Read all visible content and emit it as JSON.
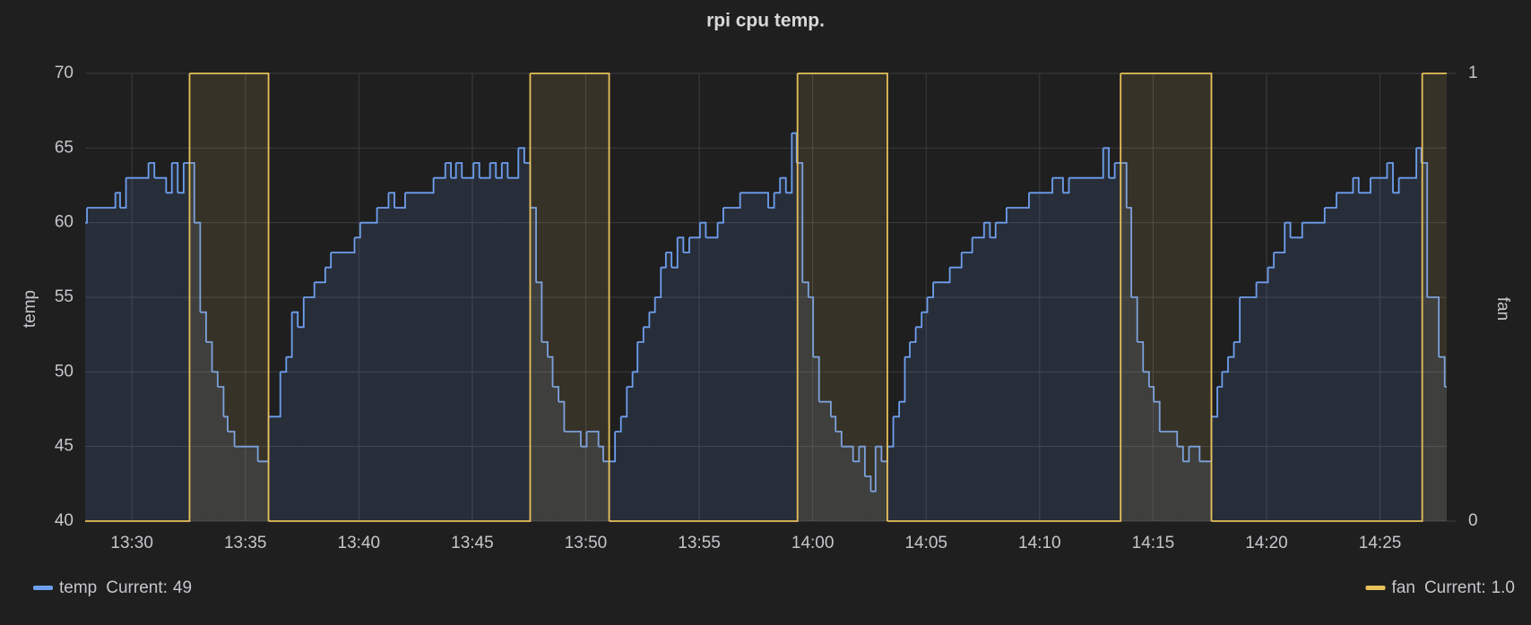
{
  "chart_data": {
    "type": "line",
    "step": true,
    "title": "rpi cpu temp.",
    "y_label": "temp",
    "y2_label": "fan",
    "legend_stat": "Current:",
    "grid": true,
    "xlim": [
      807.94,
      867.94
    ],
    "xticks": [
      {
        "value": 810,
        "label": "13:30"
      },
      {
        "value": 815,
        "label": "13:35"
      },
      {
        "value": 820,
        "label": "13:40"
      },
      {
        "value": 825,
        "label": "13:45"
      },
      {
        "value": 830,
        "label": "13:50"
      },
      {
        "value": 835,
        "label": "13:55"
      },
      {
        "value": 840,
        "label": "14:00"
      },
      {
        "value": 845,
        "label": "14:05"
      },
      {
        "value": 850,
        "label": "14:10"
      },
      {
        "value": 855,
        "label": "14:15"
      },
      {
        "value": 860,
        "label": "14:20"
      },
      {
        "value": 865,
        "label": "14:25"
      }
    ],
    "ylim": [
      40,
      70
    ],
    "yticks": [
      40,
      45,
      50,
      55,
      60,
      65,
      70
    ],
    "y2lim": [
      0,
      1
    ],
    "y2ticks": [
      0,
      1
    ],
    "series": [
      {
        "name": "temp",
        "color": "#6e9fee",
        "current": 49,
        "x": [
          807.94,
          808.02,
          809.27,
          809.48,
          809.74,
          810.73,
          810.99,
          811.51,
          811.76,
          812.02,
          812.28,
          812.75,
          813.01,
          813.27,
          813.53,
          813.78,
          814.04,
          814.22,
          814.52,
          815.55,
          816.02,
          816.54,
          816.8,
          817.05,
          817.31,
          817.57,
          818.04,
          818.52,
          818.77,
          819.81,
          820.06,
          820.8,
          821.31,
          821.57,
          822.04,
          823.29,
          823.81,
          824.06,
          824.28,
          824.54,
          825.05,
          825.31,
          825.78,
          826.04,
          826.3,
          826.56,
          827.03,
          827.29,
          827.55,
          827.81,
          828.06,
          828.32,
          828.54,
          828.8,
          829.05,
          829.78,
          830.04,
          830.56,
          830.77,
          831.29,
          831.55,
          831.81,
          832.06,
          832.28,
          832.54,
          832.8,
          833.05,
          833.31,
          833.53,
          833.78,
          834.04,
          834.3,
          834.56,
          835.03,
          835.29,
          835.81,
          836.06,
          836.8,
          838.04,
          838.3,
          838.56,
          838.82,
          839.08,
          839.29,
          839.55,
          839.81,
          840.02,
          840.28,
          840.8,
          841.01,
          841.27,
          841.78,
          842.04,
          842.3,
          842.56,
          842.77,
          843.03,
          843.29,
          843.55,
          843.81,
          844.06,
          844.28,
          844.54,
          844.8,
          845.05,
          845.31,
          846.04,
          846.56,
          847.03,
          847.55,
          847.81,
          848.06,
          848.54,
          849.53,
          850.56,
          851.03,
          851.29,
          852.8,
          853.05,
          853.31,
          853.83,
          854.04,
          854.3,
          854.56,
          854.82,
          855.03,
          855.29,
          856.06,
          856.32,
          856.58,
          857.05,
          857.57,
          857.83,
          858.04,
          858.3,
          858.56,
          858.82,
          859.55,
          860.06,
          860.32,
          860.8,
          861.05,
          861.57,
          862.56,
          863.08,
          863.81,
          864.06,
          864.58,
          865.31,
          865.57,
          865.83,
          866.6,
          866.82,
          867.08,
          867.59,
          867.85
        ],
        "values": [
          60,
          61,
          62,
          61,
          63,
          64,
          63,
          62,
          64,
          62,
          64,
          60,
          54,
          52,
          50,
          49,
          47,
          46,
          45,
          44,
          47,
          50,
          51,
          54,
          53,
          55,
          56,
          57,
          58,
          59,
          60,
          61,
          62,
          61,
          62,
          63,
          64,
          63,
          64,
          63,
          64,
          63,
          64,
          63,
          64,
          63,
          65,
          64,
          61,
          56,
          52,
          51,
          49,
          48,
          46,
          45,
          46,
          45,
          44,
          46,
          47,
          49,
          50,
          52,
          53,
          54,
          55,
          57,
          58,
          57,
          59,
          58,
          59,
          60,
          59,
          60,
          61,
          62,
          61,
          62,
          63,
          62,
          66,
          64,
          56,
          55,
          51,
          48,
          47,
          46,
          45,
          44,
          45,
          43,
          42,
          45,
          44,
          45,
          47,
          48,
          51,
          52,
          53,
          54,
          55,
          56,
          57,
          58,
          59,
          60,
          59,
          60,
          61,
          62,
          63,
          62,
          63,
          65,
          63,
          64,
          61,
          55,
          52,
          50,
          49,
          48,
          46,
          45,
          44,
          45,
          44,
          47,
          49,
          50,
          51,
          52,
          55,
          56,
          57,
          58,
          60,
          59,
          60,
          61,
          62,
          63,
          62,
          63,
          64,
          62,
          63,
          65,
          64,
          55,
          51,
          49
        ]
      },
      {
        "name": "fan",
        "color": "#e8c15a",
        "axis": "y2",
        "current": 1,
        "current_label": "1.0",
        "x": [
          807.94,
          812.54,
          816.02,
          827.55,
          831.03,
          839.33,
          843.29,
          853.57,
          857.57,
          866.86
        ],
        "values": [
          0,
          1,
          0,
          1,
          0,
          1,
          0,
          1,
          0,
          1
        ]
      }
    ]
  }
}
